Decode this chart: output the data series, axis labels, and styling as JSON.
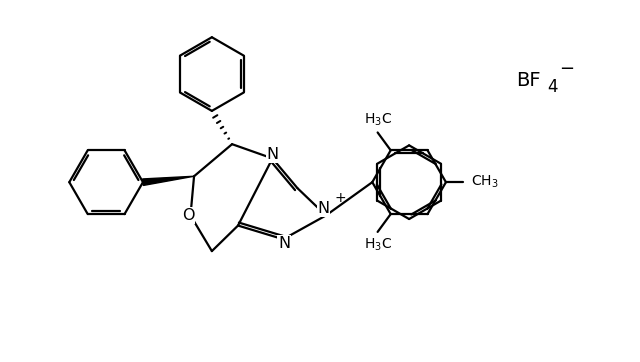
{
  "background_color": "#ffffff",
  "line_color": "#000000",
  "line_width": 1.6,
  "figsize": [
    6.4,
    3.62
  ],
  "dpi": 100,
  "xlim": [
    0,
    10
  ],
  "ylim": [
    0,
    6.0
  ],
  "r_hex": 0.62,
  "bf4_x": 8.3,
  "bf4_y": 4.7,
  "bf4_fontsize": 14
}
